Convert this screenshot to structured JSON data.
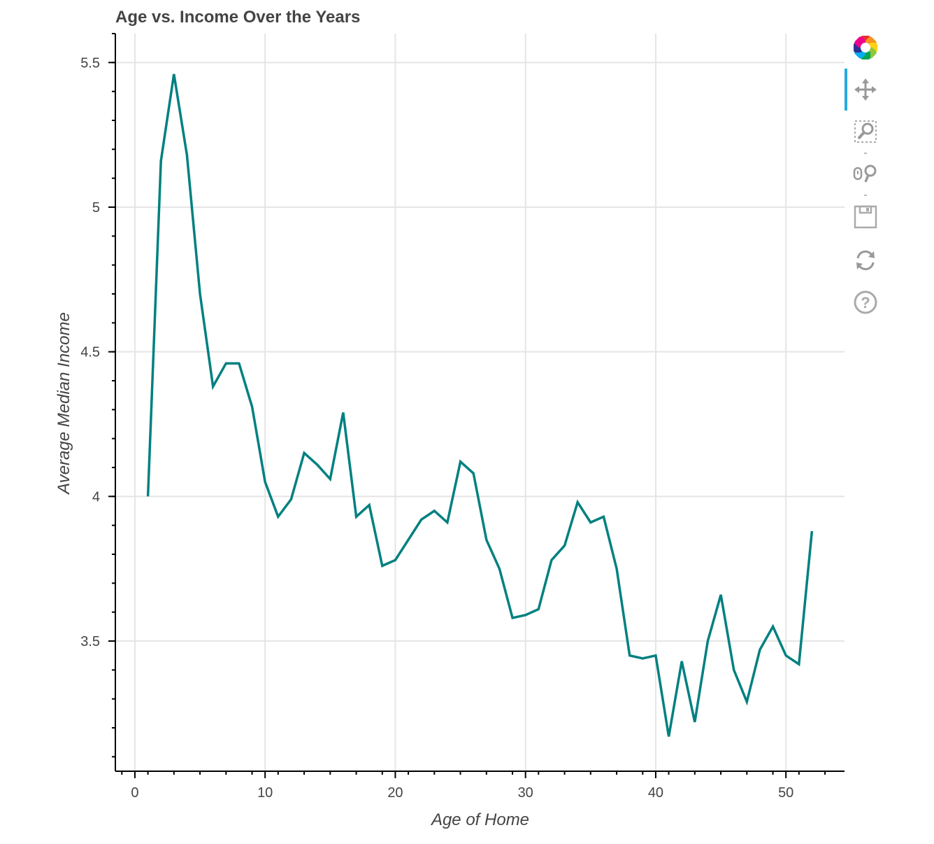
{
  "chart_data": {
    "type": "line",
    "title": "Age vs. Income Over the Years",
    "xlabel": "Age of Home",
    "ylabel": "Average Median Income",
    "xlim": [
      -1.5,
      54.5
    ],
    "ylim": [
      3.05,
      5.6
    ],
    "x_ticks": [
      0,
      10,
      20,
      30,
      40,
      50
    ],
    "x_tick_labels": [
      "0",
      "10",
      "20",
      "30",
      "40",
      "50"
    ],
    "y_ticks": [
      3.5,
      4,
      4.5,
      5,
      5.5
    ],
    "y_tick_labels": [
      "3.5",
      "4",
      "4.5",
      "5",
      "5.5"
    ],
    "grid": true,
    "line_color": "#008080",
    "series": [
      {
        "x": [
          1,
          2,
          3,
          4,
          5,
          6,
          7,
          8,
          9,
          10,
          11,
          12,
          13,
          14,
          15,
          16,
          17,
          18,
          19,
          20,
          21,
          22,
          23,
          24,
          25,
          26,
          27,
          28,
          29,
          30,
          31,
          32,
          33,
          34,
          35,
          36,
          37,
          38,
          39,
          40,
          41,
          42,
          43,
          44,
          45,
          46,
          47,
          48,
          49,
          50,
          51,
          52
        ],
        "y": [
          4.0,
          5.16,
          5.46,
          5.18,
          4.7,
          4.38,
          4.46,
          4.46,
          4.31,
          4.05,
          3.93,
          3.99,
          4.15,
          4.11,
          4.06,
          4.29,
          3.93,
          3.97,
          3.76,
          3.78,
          3.85,
          3.92,
          3.95,
          3.91,
          4.12,
          4.08,
          3.85,
          3.75,
          3.58,
          3.59,
          3.61,
          3.78,
          3.83,
          3.98,
          3.91,
          3.93,
          3.75,
          3.45,
          3.44,
          3.45,
          3.17,
          3.43,
          3.22,
          3.5,
          3.66,
          3.4,
          3.29,
          3.47,
          3.55,
          3.45,
          3.42,
          3.88
        ]
      }
    ]
  },
  "toolbar": {
    "tools": [
      "bokeh-logo-icon",
      "pan-icon",
      "box-zoom-icon",
      "wheel-zoom-icon",
      "save-icon",
      "reset-icon",
      "help-icon"
    ]
  }
}
